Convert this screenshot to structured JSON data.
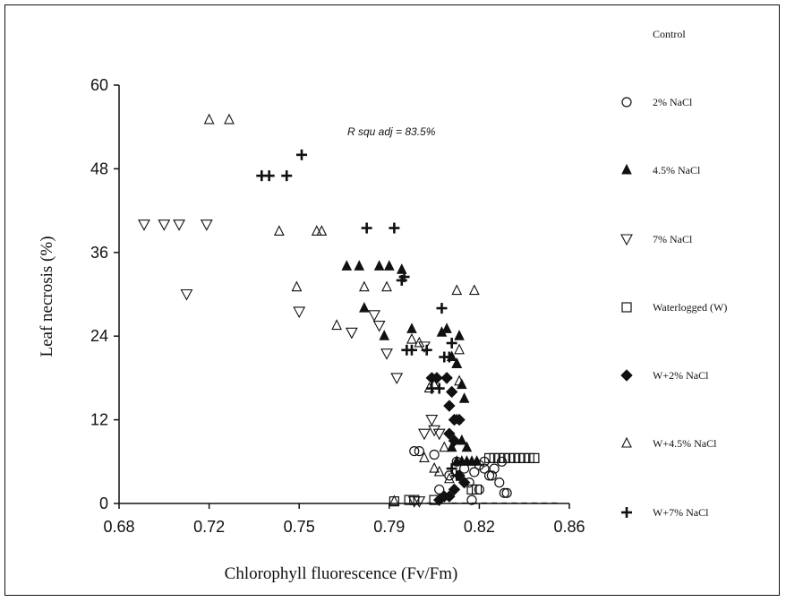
{
  "chart_data": {
    "type": "scatter",
    "xlabel": "Chlorophyll fluorescence (Fv/Fm)",
    "ylabel": "Leaf necrosis (%)",
    "xlim": [
      0.68,
      0.86
    ],
    "ylim": [
      0,
      60
    ],
    "x_ticks": [
      "0.68",
      "0.72",
      "0.75",
      "0.79",
      "0.82",
      "0.86"
    ],
    "x_tick_values": [
      0.68,
      0.716,
      0.752,
      0.788,
      0.824,
      0.86
    ],
    "y_ticks": [
      "0",
      "12",
      "24",
      "36",
      "48",
      "60"
    ],
    "y_tick_values": [
      0,
      12,
      24,
      36,
      48,
      60
    ],
    "annotation": "R squ adj = 83.5%",
    "grid": false,
    "legend_position": "right",
    "series": [
      {
        "name": "Control",
        "marker": "dash",
        "color": "#111111",
        "points": [
          [
            0.814,
            0.05
          ],
          [
            0.818,
            0.05
          ],
          [
            0.822,
            0.05
          ],
          [
            0.826,
            0.05
          ],
          [
            0.83,
            0.05
          ],
          [
            0.834,
            0.05
          ],
          [
            0.838,
            0.05
          ],
          [
            0.842,
            0.05
          ],
          [
            0.846,
            0.05
          ],
          [
            0.85,
            0.05
          ],
          [
            0.854,
            0.05
          ],
          [
            0.808,
            0.05
          ],
          [
            0.804,
            0.05
          ],
          [
            0.8,
            0.05
          ]
        ]
      },
      {
        "name": "2% NaCl",
        "marker": "circle",
        "points": [
          [
            0.798,
            7.5
          ],
          [
            0.8,
            7.5
          ],
          [
            0.806,
            7
          ],
          [
            0.808,
            2
          ],
          [
            0.812,
            4
          ],
          [
            0.815,
            6
          ],
          [
            0.818,
            5
          ],
          [
            0.82,
            3
          ],
          [
            0.822,
            4.5
          ],
          [
            0.824,
            5.5
          ],
          [
            0.826,
            6
          ],
          [
            0.828,
            4
          ],
          [
            0.83,
            5
          ],
          [
            0.832,
            3
          ],
          [
            0.833,
            6
          ],
          [
            0.834,
            1.5
          ],
          [
            0.835,
            1.5
          ],
          [
            0.821,
            0.5
          ],
          [
            0.826,
            5
          ],
          [
            0.829,
            4
          ],
          [
            0.824,
            2
          ]
        ]
      },
      {
        "name": "4.5% NaCl",
        "marker": "triangle-up-filled",
        "points": [
          [
            0.771,
            34
          ],
          [
            0.776,
            34
          ],
          [
            0.784,
            34
          ],
          [
            0.788,
            34
          ],
          [
            0.793,
            33.5
          ],
          [
            0.778,
            28
          ],
          [
            0.786,
            24
          ],
          [
            0.797,
            25
          ],
          [
            0.809,
            24.5
          ],
          [
            0.811,
            25
          ],
          [
            0.816,
            24
          ],
          [
            0.813,
            21
          ],
          [
            0.815,
            20
          ],
          [
            0.817,
            17
          ],
          [
            0.818,
            15
          ],
          [
            0.815,
            12
          ],
          [
            0.817,
            9
          ],
          [
            0.819,
            8
          ],
          [
            0.813,
            8
          ],
          [
            0.815,
            6
          ],
          [
            0.817,
            6
          ],
          [
            0.819,
            6
          ],
          [
            0.821,
            6
          ],
          [
            0.823,
            6
          ]
        ]
      },
      {
        "name": "7% NaCl",
        "marker": "triangle-down",
        "points": [
          [
            0.69,
            40
          ],
          [
            0.698,
            40
          ],
          [
            0.704,
            40
          ],
          [
            0.715,
            40
          ],
          [
            0.707,
            30
          ],
          [
            0.752,
            27.5
          ],
          [
            0.773,
            24.5
          ],
          [
            0.782,
            27
          ],
          [
            0.784,
            25.5
          ],
          [
            0.787,
            21.5
          ],
          [
            0.791,
            18
          ],
          [
            0.802,
            22.5
          ],
          [
            0.805,
            12
          ],
          [
            0.802,
            10
          ],
          [
            0.806,
            10.5
          ],
          [
            0.808,
            10
          ],
          [
            0.8,
            0.3
          ],
          [
            0.798,
            0.3
          ]
        ]
      },
      {
        "name": "Waterlogged (W)",
        "marker": "square",
        "points": [
          [
            0.79,
            0.3
          ],
          [
            0.796,
            0.5
          ],
          [
            0.798,
            0.5
          ],
          [
            0.806,
            0.5
          ],
          [
            0.821,
            2
          ],
          [
            0.823,
            2
          ],
          [
            0.828,
            6.5
          ],
          [
            0.83,
            6.5
          ],
          [
            0.832,
            6.5
          ],
          [
            0.834,
            6.5
          ],
          [
            0.836,
            6.5
          ],
          [
            0.838,
            6.5
          ],
          [
            0.84,
            6.5
          ],
          [
            0.842,
            6.5
          ],
          [
            0.844,
            6.5
          ],
          [
            0.846,
            6.5
          ]
        ]
      },
      {
        "name": "W+2% NaCl",
        "marker": "diamond-filled",
        "points": [
          [
            0.805,
            18
          ],
          [
            0.807,
            18
          ],
          [
            0.811,
            18
          ],
          [
            0.813,
            16
          ],
          [
            0.812,
            14
          ],
          [
            0.814,
            12
          ],
          [
            0.816,
            12
          ],
          [
            0.812,
            10
          ],
          [
            0.814,
            9
          ],
          [
            0.816,
            4
          ],
          [
            0.818,
            3
          ],
          [
            0.814,
            2
          ],
          [
            0.812,
            1
          ],
          [
            0.81,
            1
          ],
          [
            0.808,
            0.5
          ]
        ]
      },
      {
        "name": "W+4.5% NaCl",
        "marker": "triangle-up",
        "points": [
          [
            0.716,
            55
          ],
          [
            0.724,
            55
          ],
          [
            0.744,
            39
          ],
          [
            0.759,
            39
          ],
          [
            0.761,
            39
          ],
          [
            0.751,
            31
          ],
          [
            0.767,
            25.5
          ],
          [
            0.778,
            31
          ],
          [
            0.787,
            31
          ],
          [
            0.797,
            23.5
          ],
          [
            0.8,
            23
          ],
          [
            0.802,
            6.5
          ],
          [
            0.804,
            16.5
          ],
          [
            0.806,
            17
          ],
          [
            0.815,
            30.5
          ],
          [
            0.822,
            30.5
          ],
          [
            0.816,
            22
          ],
          [
            0.815,
            20
          ],
          [
            0.816,
            17.5
          ],
          [
            0.808,
            4.5
          ],
          [
            0.81,
            8
          ],
          [
            0.812,
            3.5
          ],
          [
            0.79,
            0.3
          ],
          [
            0.806,
            5
          ]
        ]
      },
      {
        "name": "W+7% NaCl",
        "marker": "plus",
        "points": [
          [
            0.737,
            47
          ],
          [
            0.74,
            47
          ],
          [
            0.747,
            47
          ],
          [
            0.753,
            50
          ],
          [
            0.779,
            39.5
          ],
          [
            0.79,
            39.5
          ],
          [
            0.793,
            32
          ],
          [
            0.794,
            32.5
          ],
          [
            0.795,
            22
          ],
          [
            0.797,
            22
          ],
          [
            0.803,
            22
          ],
          [
            0.805,
            16.5
          ],
          [
            0.808,
            16.5
          ],
          [
            0.809,
            28
          ],
          [
            0.81,
            21
          ],
          [
            0.812,
            21
          ],
          [
            0.813,
            23
          ],
          [
            0.811,
            18
          ],
          [
            0.813,
            5
          ],
          [
            0.815,
            4
          ]
        ]
      }
    ]
  },
  "plot": {
    "annotation": "R squ adj = 83.5%"
  }
}
